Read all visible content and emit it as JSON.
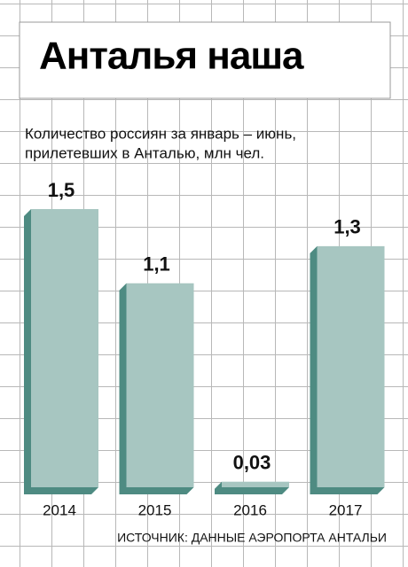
{
  "chart_data": {
    "type": "bar",
    "title": "Анталья наша",
    "subtitle": [
      "Количество россиян за январь – июнь,",
      "прилетевших в Анталью, млн чел."
    ],
    "categories": [
      "2014",
      "2015",
      "2016",
      "2017"
    ],
    "values": [
      1.5,
      1.1,
      0.03,
      1.3
    ],
    "value_labels": [
      "1,5",
      "1,1",
      "0,03",
      "1,3"
    ],
    "color": "#a7c6c1",
    "source": "ИСТОЧНИК: ДАННЫЕ АЭРОПОРТА АНТАЛЬИ"
  }
}
